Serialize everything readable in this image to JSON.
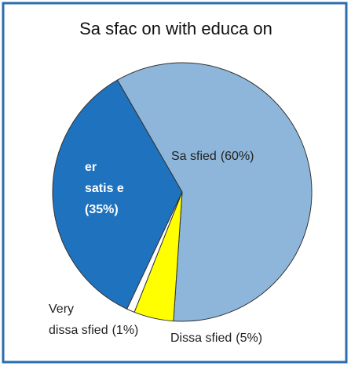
{
  "chart_data": {
    "type": "pie",
    "title": "Sa sfac on with educa on",
    "categories": [
      "Sa sfied",
      "Dissa sfied",
      "Very dissa sfied",
      "er satis e"
    ],
    "values": [
      60,
      5,
      1,
      35
    ],
    "value_labels": [
      "(60%)",
      "(5%)",
      "(1%)",
      "(35%)"
    ],
    "colors": [
      "#8db6da",
      "#ffff00",
      "#ffffff",
      "#1f72bd"
    ]
  }
}
